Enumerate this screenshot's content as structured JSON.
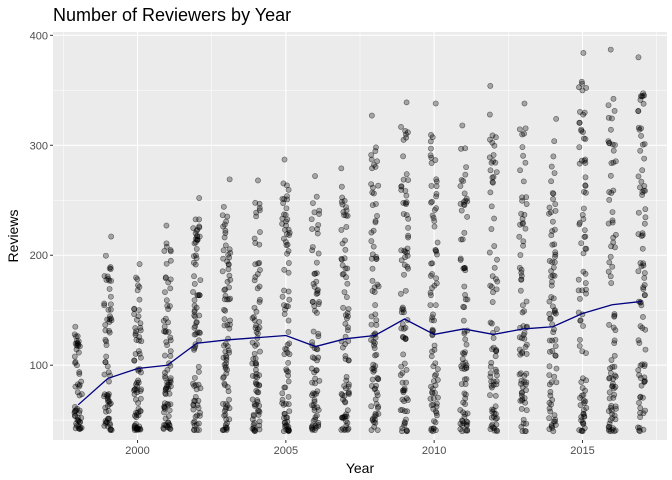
{
  "chart_data": {
    "type": "scatter",
    "title": "Number of Reviewers by Year",
    "xlabel": "Year",
    "ylabel": "Reviews",
    "xlim": [
      1997.15,
      2017.85
    ],
    "ylim": [
      32,
      403
    ],
    "x_ticks": [
      2000,
      2005,
      2010,
      2015
    ],
    "y_ticks": [
      100,
      200,
      300,
      400
    ],
    "grid": true,
    "legend": "none",
    "colors": {
      "panel": "#ebebeb",
      "grid": "#ffffff",
      "points": "#000000",
      "line": "#000080"
    },
    "series": [
      {
        "kind": "line",
        "x": [
          1998,
          1999,
          2000,
          2001,
          2002,
          2003,
          2004,
          2005,
          2006,
          2007,
          2008,
          2009,
          2010,
          2011,
          2012,
          2013,
          2014,
          2015,
          2016,
          2017
        ],
        "y": [
          64,
          88,
          97,
          100,
          120,
          123,
          125,
          127,
          117,
          124,
          127,
          142,
          128,
          133,
          128,
          133,
          135,
          147,
          155,
          158
        ]
      },
      {
        "kind": "points",
        "x": [
          1998,
          1999,
          2000,
          2001,
          2002,
          2003,
          2004,
          2005,
          2006,
          2007,
          2008,
          2009,
          2010,
          2011,
          2012,
          2013,
          2014,
          2015,
          2016,
          2017
        ],
        "y_min": [
          42,
          41,
          41,
          42,
          41,
          41,
          40,
          40,
          41,
          41,
          41,
          40,
          40,
          40,
          40,
          40,
          40,
          40,
          40,
          40
        ],
        "y_max": [
          135,
          217,
          192,
          227,
          252,
          269,
          268,
          287,
          272,
          279,
          327,
          339,
          338,
          318,
          354,
          338,
          324,
          384,
          387,
          380
        ],
        "count": [
          55,
          70,
          75,
          80,
          85,
          85,
          85,
          85,
          80,
          80,
          85,
          85,
          85,
          80,
          80,
          80,
          80,
          85,
          85,
          85
        ]
      }
    ]
  }
}
